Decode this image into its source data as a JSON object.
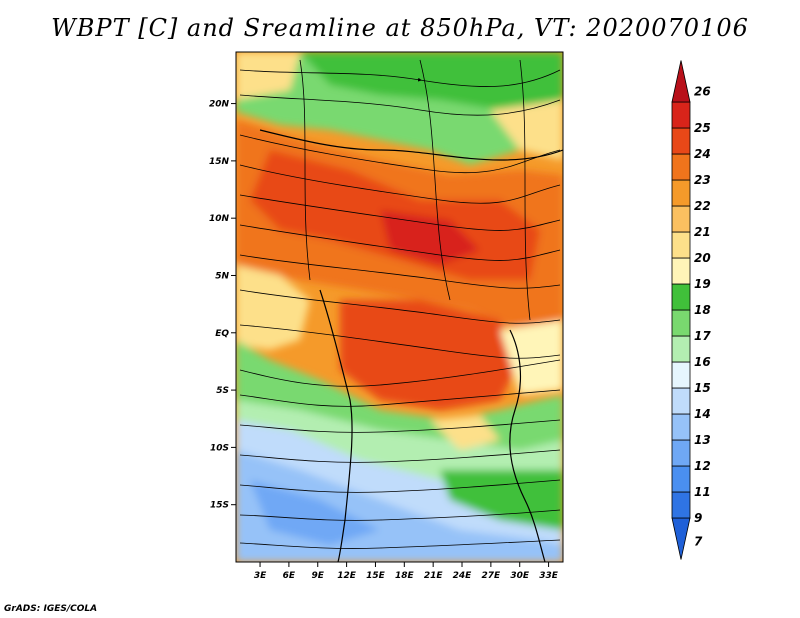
{
  "title": "WBPT [C] and Sreamline at 850hPa, VT: 2020070106",
  "footer": "GrADS: IGES/COLA",
  "map": {
    "lat_labels": [
      "20N",
      "15N",
      "10N",
      "5N",
      "EQ",
      "5S",
      "10S",
      "15S"
    ],
    "lat_values": [
      20,
      15,
      10,
      5,
      0,
      -5,
      -10,
      -15
    ],
    "lon_labels": [
      "3E",
      "6E",
      "9E",
      "12E",
      "15E",
      "18E",
      "21E",
      "24E",
      "27E",
      "30E",
      "33E"
    ],
    "lon_values": [
      3,
      6,
      9,
      12,
      15,
      18,
      21,
      24,
      27,
      30,
      33
    ],
    "lon_range": [
      0.5,
      34.5
    ],
    "lat_range": [
      -20,
      24.5
    ]
  },
  "colorbar": {
    "labels": [
      "7",
      "9",
      "11",
      "12",
      "13",
      "14",
      "15",
      "16",
      "17",
      "18",
      "19",
      "20",
      "21",
      "22",
      "23",
      "24",
      "25",
      "26"
    ],
    "colors": [
      "#1f60d8",
      "#2f74e4",
      "#4a8ff0",
      "#6fa8f5",
      "#96c2f8",
      "#c0dcfb",
      "#e6f6fe",
      "#b3eeb1",
      "#79d96f",
      "#40c03a",
      "#fff5b8",
      "#fde08a",
      "#fbc060",
      "#f59a2a",
      "#f0741c",
      "#e84818",
      "#d8241a",
      "#b8101a"
    ]
  }
}
